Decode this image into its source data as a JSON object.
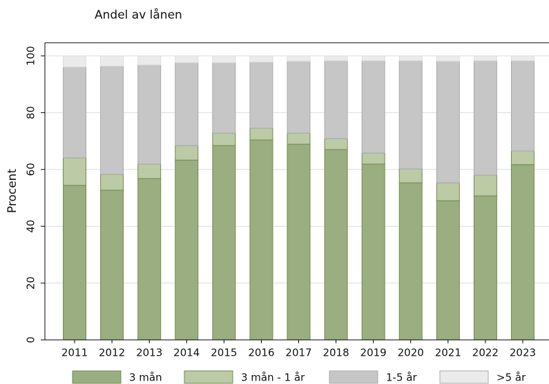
{
  "chart_data": {
    "type": "stacked_bar",
    "title": "Andel av lånen",
    "y_label": "Procent",
    "categories": [
      "2011",
      "2012",
      "2013",
      "2014",
      "2015",
      "2016",
      "2017",
      "2018",
      "2019",
      "2020",
      "2021",
      "2022",
      "2023"
    ],
    "series": [
      {
        "name": "3 mån",
        "color": "#9aae82",
        "values": [
          54.4,
          52.7,
          56.8,
          63.3,
          68.4,
          70.4,
          68.9,
          67.0,
          61.9,
          55.3,
          49.0,
          50.7,
          61.7
        ]
      },
      {
        "name": "3 mån - 1 år",
        "color": "#bccaa6",
        "values": [
          9.7,
          5.6,
          5.1,
          5.1,
          4.4,
          4.1,
          3.9,
          3.9,
          3.9,
          4.9,
          6.3,
          7.3,
          4.8
        ]
      },
      {
        "name": "1-5 år",
        "color": "#c6c6c6",
        "values": [
          32.0,
          38.1,
          34.9,
          29.2,
          24.8,
          23.3,
          25.3,
          27.4,
          32.5,
          38.1,
          42.8,
          40.3,
          31.8
        ]
      },
      {
        "name": ">5 år",
        "color": "#ebebeb",
        "values": [
          3.9,
          3.6,
          3.2,
          2.4,
          2.4,
          2.2,
          1.9,
          1.7,
          1.7,
          1.7,
          1.9,
          1.7,
          1.7
        ]
      }
    ],
    "ylim": [
      0,
      100
    ],
    "yticks": [
      0,
      20,
      40,
      60,
      80,
      100
    ],
    "grid": true
  }
}
